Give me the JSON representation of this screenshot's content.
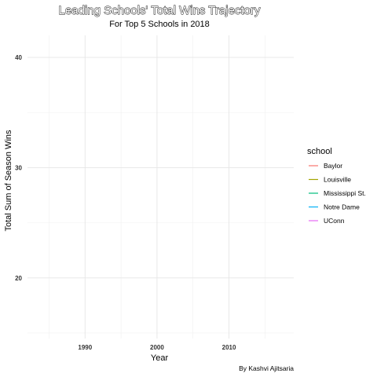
{
  "chart_data": {
    "type": "line",
    "title": "Leading Schools' Total Wins Trajectory",
    "subtitle": "For Top 5 Schools in 2018",
    "xlabel": "Year",
    "ylabel": "Total Sum of Season Wins",
    "caption": "By Kashvi Ajitsaria",
    "xlim": [
      1982,
      2019
    ],
    "ylim": [
      14.5,
      42
    ],
    "x_major_ticks": [
      1990,
      2000,
      2010
    ],
    "x_minor_ticks": [
      1985,
      1995,
      2005,
      2015
    ],
    "y_major_ticks": [
      20,
      30,
      40
    ],
    "y_minor_ticks": [
      15,
      25,
      35
    ],
    "grid": true,
    "legend": {
      "title": "school",
      "placement": "right"
    },
    "series": [
      {
        "name": "Baylor",
        "color": "#F8766D",
        "values": []
      },
      {
        "name": "Louisville",
        "color": "#A3A500",
        "values": []
      },
      {
        "name": "Mississippi St.",
        "color": "#00BF7D",
        "values": []
      },
      {
        "name": "Notre Dame",
        "color": "#00B0F6",
        "values": []
      },
      {
        "name": "UConn",
        "color": "#E76BF3",
        "values": []
      }
    ]
  }
}
